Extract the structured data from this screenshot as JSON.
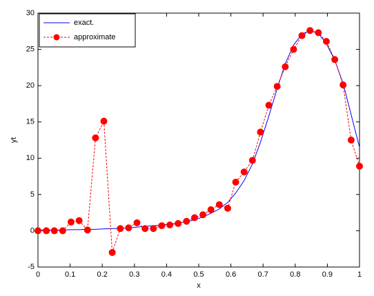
{
  "chart_data": {
    "type": "line",
    "xlabel": "x",
    "ylabel": "yt",
    "x": [
      0,
      0.026,
      0.051,
      0.077,
      0.103,
      0.128,
      0.154,
      0.179,
      0.205,
      0.231,
      0.256,
      0.282,
      0.308,
      0.333,
      0.359,
      0.385,
      0.41,
      0.436,
      0.462,
      0.487,
      0.513,
      0.538,
      0.564,
      0.59,
      0.615,
      0.641,
      0.667,
      0.692,
      0.718,
      0.744,
      0.769,
      0.795,
      0.821,
      0.846,
      0.872,
      0.897,
      0.923,
      0.949,
      0.974,
      1
    ],
    "series": [
      {
        "name": "exact.",
        "color": "#0000ff",
        "style": "solid",
        "marker": "none",
        "values": [
          0.1,
          0.1,
          0.1,
          0.1,
          0.15,
          0.15,
          0.2,
          0.2,
          0.25,
          0.3,
          0.3,
          0.4,
          0.5,
          0.6,
          0.7,
          0.8,
          0.9,
          1.05,
          1.25,
          1.5,
          1.9,
          2.4,
          3.0,
          3.9,
          5.2,
          6.9,
          9.2,
          12.2,
          15.8,
          19.6,
          23.0,
          25.6,
          27.1,
          27.6,
          27.2,
          25.8,
          23.5,
          20.3,
          16.0,
          11.5
        ]
      },
      {
        "name": "approximate",
        "color": "#ff0000",
        "style": "dashed",
        "marker": "circle",
        "values": [
          0,
          0,
          0,
          0,
          1.2,
          1.4,
          0.1,
          12.8,
          15.1,
          -3.0,
          0.3,
          0.4,
          1.1,
          0.3,
          0.3,
          0.7,
          0.8,
          1.0,
          1.3,
          1.8,
          2.2,
          2.9,
          3.6,
          3.1,
          6.7,
          8.1,
          9.7,
          13.6,
          17.3,
          19.9,
          22.6,
          25.0,
          26.9,
          27.6,
          27.3,
          26.1,
          23.6,
          20.1,
          12.5,
          8.9
        ]
      }
    ],
    "xlim": [
      0,
      1
    ],
    "xticks": [
      0,
      0.1,
      0.2,
      0.3,
      0.4,
      0.5,
      0.6,
      0.7,
      0.8,
      0.9,
      1
    ],
    "ylim": [
      -5,
      30
    ],
    "yticks": [
      -5,
      0,
      5,
      10,
      15,
      20,
      25,
      30
    ],
    "legend": "top-left"
  }
}
